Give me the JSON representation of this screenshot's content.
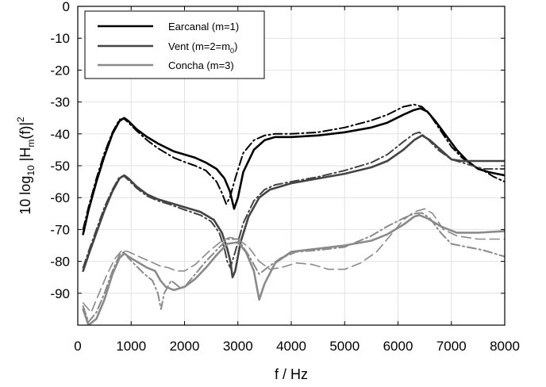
{
  "chart_data": {
    "type": "line",
    "xlabel": "f / Hz",
    "ylabel": {
      "prefix": "10 log",
      "sub": "10",
      "mid": " |H",
      "sub2": "m",
      "suffix": "(f)|",
      "sup": "2"
    },
    "xlim": [
      0,
      8000
    ],
    "ylim": [
      -100,
      0
    ],
    "xticks": [
      0,
      1000,
      2000,
      3000,
      4000,
      5000,
      6000,
      7000,
      8000
    ],
    "yticks": [
      0,
      -10,
      -20,
      -30,
      -40,
      -50,
      -60,
      -70,
      -80,
      -90
    ],
    "grid": true,
    "legend_position": "top-left",
    "legend": [
      {
        "text": "Earcanal (m=1)"
      },
      {
        "text": "Vent (m=2=m",
        "sub": "0",
        "close": ")"
      },
      {
        "text": "Concha (m=3)"
      }
    ],
    "series": [
      {
        "id": "earcanal",
        "variant": "solid",
        "color": "#000000",
        "width": 2.6,
        "points": [
          [
            100,
            -71.5
          ],
          [
            200,
            -64
          ],
          [
            350,
            -55
          ],
          [
            500,
            -47
          ],
          [
            650,
            -40
          ],
          [
            780,
            -36
          ],
          [
            870,
            -35
          ],
          [
            950,
            -36
          ],
          [
            1100,
            -38.5
          ],
          [
            1300,
            -41
          ],
          [
            1500,
            -43
          ],
          [
            1800,
            -45.5
          ],
          [
            2000,
            -46.5
          ],
          [
            2200,
            -47.5
          ],
          [
            2400,
            -49
          ],
          [
            2600,
            -51
          ],
          [
            2750,
            -54
          ],
          [
            2850,
            -58
          ],
          [
            2930,
            -63.5
          ],
          [
            3000,
            -60
          ],
          [
            3100,
            -52
          ],
          [
            3300,
            -45
          ],
          [
            3500,
            -42
          ],
          [
            3700,
            -41
          ],
          [
            4000,
            -41
          ],
          [
            4500,
            -40.5
          ],
          [
            5000,
            -39.5
          ],
          [
            5500,
            -38
          ],
          [
            5800,
            -36.5
          ],
          [
            6100,
            -34
          ],
          [
            6300,
            -32.5
          ],
          [
            6420,
            -32
          ],
          [
            6550,
            -33
          ],
          [
            6700,
            -36
          ],
          [
            6900,
            -40.5
          ],
          [
            7100,
            -45
          ],
          [
            7300,
            -48.5
          ],
          [
            7500,
            -51
          ],
          [
            7700,
            -52
          ],
          [
            7850,
            -52.5
          ],
          [
            8000,
            -53
          ]
        ]
      },
      {
        "id": "earcanal",
        "variant": "dashdot",
        "color": "#000000",
        "width": 2.0,
        "points": [
          [
            100,
            -70
          ],
          [
            200,
            -63
          ],
          [
            350,
            -54
          ],
          [
            500,
            -46
          ],
          [
            650,
            -39.5
          ],
          [
            780,
            -35.5
          ],
          [
            870,
            -35.3
          ],
          [
            950,
            -36.5
          ],
          [
            1100,
            -39
          ],
          [
            1300,
            -42
          ],
          [
            1500,
            -44.5
          ],
          [
            1800,
            -47.5
          ],
          [
            2000,
            -48.8
          ],
          [
            2200,
            -50
          ],
          [
            2400,
            -51.5
          ],
          [
            2600,
            -55
          ],
          [
            2700,
            -58.5
          ],
          [
            2780,
            -62
          ],
          [
            2850,
            -60
          ],
          [
            2950,
            -54
          ],
          [
            3100,
            -46
          ],
          [
            3300,
            -42
          ],
          [
            3500,
            -40.5
          ],
          [
            3700,
            -40
          ],
          [
            4000,
            -40
          ],
          [
            4500,
            -39.5
          ],
          [
            5000,
            -38
          ],
          [
            5500,
            -35.8
          ],
          [
            5800,
            -34
          ],
          [
            6100,
            -31.5
          ],
          [
            6300,
            -30.8
          ],
          [
            6450,
            -31.5
          ],
          [
            6600,
            -34
          ],
          [
            6800,
            -39
          ],
          [
            7000,
            -44
          ],
          [
            7200,
            -47.5
          ],
          [
            7400,
            -50
          ],
          [
            7600,
            -51.5
          ],
          [
            7800,
            -53.5
          ],
          [
            8000,
            -55
          ]
        ]
      },
      {
        "id": "vent",
        "variant": "solid",
        "color": "#444444",
        "width": 2.6,
        "points": [
          [
            100,
            -83
          ],
          [
            200,
            -78
          ],
          [
            350,
            -71
          ],
          [
            500,
            -64
          ],
          [
            650,
            -58
          ],
          [
            780,
            -54
          ],
          [
            870,
            -53
          ],
          [
            950,
            -54
          ],
          [
            1100,
            -56.5
          ],
          [
            1300,
            -59
          ],
          [
            1500,
            -60.5
          ],
          [
            1700,
            -61.5
          ],
          [
            2000,
            -63
          ],
          [
            2300,
            -64.5
          ],
          [
            2550,
            -67
          ],
          [
            2700,
            -71
          ],
          [
            2800,
            -76
          ],
          [
            2860,
            -80
          ],
          [
            2900,
            -85
          ],
          [
            2950,
            -83
          ],
          [
            3050,
            -74
          ],
          [
            3200,
            -66
          ],
          [
            3400,
            -60
          ],
          [
            3600,
            -57.5
          ],
          [
            4000,
            -55.5
          ],
          [
            4500,
            -54
          ],
          [
            5000,
            -52.5
          ],
          [
            5500,
            -50.5
          ],
          [
            5800,
            -48.5
          ],
          [
            6100,
            -45
          ],
          [
            6300,
            -42
          ],
          [
            6450,
            -40.5
          ],
          [
            6600,
            -42
          ],
          [
            6800,
            -45
          ],
          [
            7000,
            -48
          ],
          [
            7200,
            -48.5
          ],
          [
            7500,
            -48.5
          ],
          [
            8000,
            -48.5
          ]
        ]
      },
      {
        "id": "vent",
        "variant": "dashdot",
        "color": "#444444",
        "width": 2.0,
        "points": [
          [
            100,
            -82
          ],
          [
            200,
            -77
          ],
          [
            350,
            -70
          ],
          [
            500,
            -63
          ],
          [
            650,
            -57.5
          ],
          [
            780,
            -53.5
          ],
          [
            870,
            -53.3
          ],
          [
            950,
            -54.5
          ],
          [
            1100,
            -57
          ],
          [
            1300,
            -59.5
          ],
          [
            1500,
            -61
          ],
          [
            1700,
            -62
          ],
          [
            2000,
            -63.8
          ],
          [
            2300,
            -65.5
          ],
          [
            2500,
            -67.5
          ],
          [
            2650,
            -71
          ],
          [
            2750,
            -76
          ],
          [
            2800,
            -80
          ],
          [
            2860,
            -82
          ],
          [
            2950,
            -77
          ],
          [
            3100,
            -68
          ],
          [
            3300,
            -61
          ],
          [
            3500,
            -57.5
          ],
          [
            3700,
            -56
          ],
          [
            4000,
            -55
          ],
          [
            4500,
            -53.5
          ],
          [
            5000,
            -51.5
          ],
          [
            5500,
            -49
          ],
          [
            5800,
            -46.5
          ],
          [
            6100,
            -42.5
          ],
          [
            6300,
            -40
          ],
          [
            6400,
            -39.5
          ],
          [
            6550,
            -41.5
          ],
          [
            6750,
            -45
          ],
          [
            7000,
            -48
          ],
          [
            7300,
            -49.5
          ],
          [
            7600,
            -51
          ],
          [
            8000,
            -51
          ]
        ]
      },
      {
        "id": "concha",
        "variant": "solid",
        "color": "#8a8a8a",
        "width": 2.6,
        "points": [
          [
            100,
            -95
          ],
          [
            200,
            -100
          ],
          [
            350,
            -98
          ],
          [
            500,
            -92
          ],
          [
            650,
            -84
          ],
          [
            780,
            -79
          ],
          [
            870,
            -77.5
          ],
          [
            950,
            -78.5
          ],
          [
            1100,
            -80
          ],
          [
            1300,
            -82
          ],
          [
            1450,
            -83
          ],
          [
            1550,
            -86
          ],
          [
            1650,
            -88
          ],
          [
            1800,
            -89
          ],
          [
            2000,
            -88
          ],
          [
            2200,
            -85.5
          ],
          [
            2400,
            -82
          ],
          [
            2600,
            -78
          ],
          [
            2800,
            -74.5
          ],
          [
            3000,
            -74
          ],
          [
            3150,
            -77
          ],
          [
            3300,
            -83
          ],
          [
            3400,
            -92
          ],
          [
            3500,
            -87
          ],
          [
            3700,
            -80.5
          ],
          [
            4000,
            -77
          ],
          [
            4500,
            -76
          ],
          [
            5000,
            -75
          ],
          [
            5500,
            -73.5
          ],
          [
            5800,
            -71.5
          ],
          [
            6100,
            -68.5
          ],
          [
            6300,
            -66
          ],
          [
            6400,
            -65.5
          ],
          [
            6550,
            -66.5
          ],
          [
            6800,
            -69
          ],
          [
            7100,
            -71
          ],
          [
            7500,
            -71
          ],
          [
            8000,
            -70.5
          ]
        ]
      },
      {
        "id": "concha",
        "variant": "dashdot",
        "color": "#8a8a8a",
        "width": 2.0,
        "points": [
          [
            100,
            -94
          ],
          [
            200,
            -99
          ],
          [
            350,
            -96
          ],
          [
            500,
            -90
          ],
          [
            650,
            -83
          ],
          [
            780,
            -78
          ],
          [
            870,
            -77
          ],
          [
            950,
            -79
          ],
          [
            1100,
            -81.5
          ],
          [
            1250,
            -84
          ],
          [
            1400,
            -86
          ],
          [
            1500,
            -90
          ],
          [
            1560,
            -95
          ],
          [
            1620,
            -90
          ],
          [
            1750,
            -86
          ],
          [
            1900,
            -88
          ],
          [
            2000,
            -88
          ],
          [
            2200,
            -84
          ],
          [
            2400,
            -80
          ],
          [
            2600,
            -76.5
          ],
          [
            2800,
            -73
          ],
          [
            3000,
            -73
          ],
          [
            3200,
            -78
          ],
          [
            3400,
            -84
          ],
          [
            3550,
            -82
          ],
          [
            3800,
            -79
          ],
          [
            4100,
            -77
          ],
          [
            4500,
            -76.5
          ],
          [
            5000,
            -75.5
          ],
          [
            5500,
            -72
          ],
          [
            5800,
            -69
          ],
          [
            6100,
            -66.5
          ],
          [
            6300,
            -65
          ],
          [
            6450,
            -64.8
          ],
          [
            6600,
            -66.5
          ],
          [
            6800,
            -71
          ],
          [
            7000,
            -74.5
          ],
          [
            7300,
            -75.5
          ],
          [
            7600,
            -76.5
          ],
          [
            8000,
            -78.5
          ]
        ]
      },
      {
        "id": "concha",
        "variant": "dashed",
        "color": "#8a8a8a",
        "width": 1.6,
        "points": [
          [
            100,
            -93
          ],
          [
            250,
            -96
          ],
          [
            400,
            -90
          ],
          [
            550,
            -84
          ],
          [
            700,
            -79
          ],
          [
            830,
            -76.5
          ],
          [
            950,
            -77
          ],
          [
            1150,
            -78.5
          ],
          [
            1350,
            -80
          ],
          [
            1550,
            -81.5
          ],
          [
            1700,
            -82
          ],
          [
            1850,
            -83
          ],
          [
            2000,
            -83
          ],
          [
            2200,
            -81
          ],
          [
            2450,
            -77
          ],
          [
            2700,
            -73.5
          ],
          [
            2850,
            -72.5
          ],
          [
            3000,
            -73
          ],
          [
            3200,
            -75.5
          ],
          [
            3400,
            -80
          ],
          [
            3600,
            -82.5
          ],
          [
            3800,
            -82
          ],
          [
            4100,
            -80.5
          ],
          [
            4400,
            -81
          ],
          [
            4700,
            -82.5
          ],
          [
            5000,
            -82.5
          ],
          [
            5300,
            -80.5
          ],
          [
            5600,
            -77
          ],
          [
            5900,
            -71
          ],
          [
            6100,
            -67
          ],
          [
            6300,
            -64.5
          ],
          [
            6500,
            -63.5
          ],
          [
            6650,
            -65
          ],
          [
            6850,
            -70
          ],
          [
            7100,
            -72
          ],
          [
            7500,
            -73
          ],
          [
            8000,
            -73
          ]
        ]
      }
    ]
  }
}
